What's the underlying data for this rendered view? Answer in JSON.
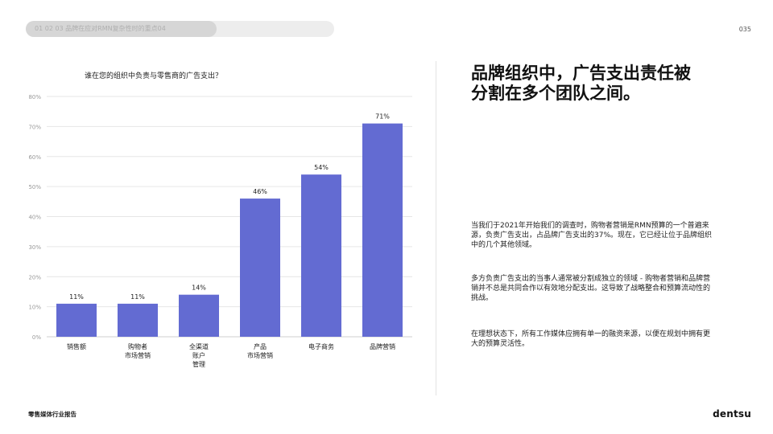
{
  "header": {
    "breadcrumb": "01 02 03 品牌在应对RMN复杂性时的重点04",
    "progress_fraction": 0.62,
    "page_number": "035"
  },
  "chart_data": {
    "type": "bar",
    "title": "谁在您的组织中负责与零售商的广告支出？",
    "categories": [
      [
        "销售额"
      ],
      [
        "购物者",
        "市场营销"
      ],
      [
        "全渠道",
        "账户",
        "管理"
      ],
      [
        "产品",
        "市场营销"
      ],
      [
        "电子商务"
      ],
      [
        "品牌营销"
      ]
    ],
    "values": [
      11,
      11,
      14,
      46,
      54,
      71
    ],
    "data_labels": [
      "11%",
      "11%",
      "14%",
      "46%",
      "54%",
      "71%"
    ],
    "ylim": [
      0,
      80
    ],
    "yticks": [
      0,
      10,
      20,
      30,
      40,
      50,
      60,
      70,
      80
    ],
    "ytick_labels": [
      "0%",
      "10%",
      "20%",
      "30%",
      "40%",
      "50%",
      "60%",
      "70%",
      "80%"
    ],
    "grid": true,
    "bar_color": "#636bd2",
    "xlabel": "",
    "ylabel": ""
  },
  "right": {
    "headline_line1": "品牌组织中，广告支出责任被",
    "headline_line2": "分割在多个团队之间。",
    "paragraph1": "当我们于2021年开始我们的调查时，购物者营销是RMN预算的一个普遍来源，负责广告支出，占品牌广告支出的37%。现在，它已经让位于品牌组织中的几个其他领域。",
    "paragraph2": "多方负责广告支出的当事人通常被分割成独立的领域 - 购物者营销和品牌营销并不总是共同合作以有效地分配支出。这导致了战略整合和预算流动性的挑战。",
    "paragraph3": "在理想状态下，所有工作媒体应拥有单一的融资来源，以便在规划中拥有更大的预算灵活性。"
  },
  "footer": {
    "report_title": "零售媒体行业报告",
    "logo_text": "dentsu"
  }
}
